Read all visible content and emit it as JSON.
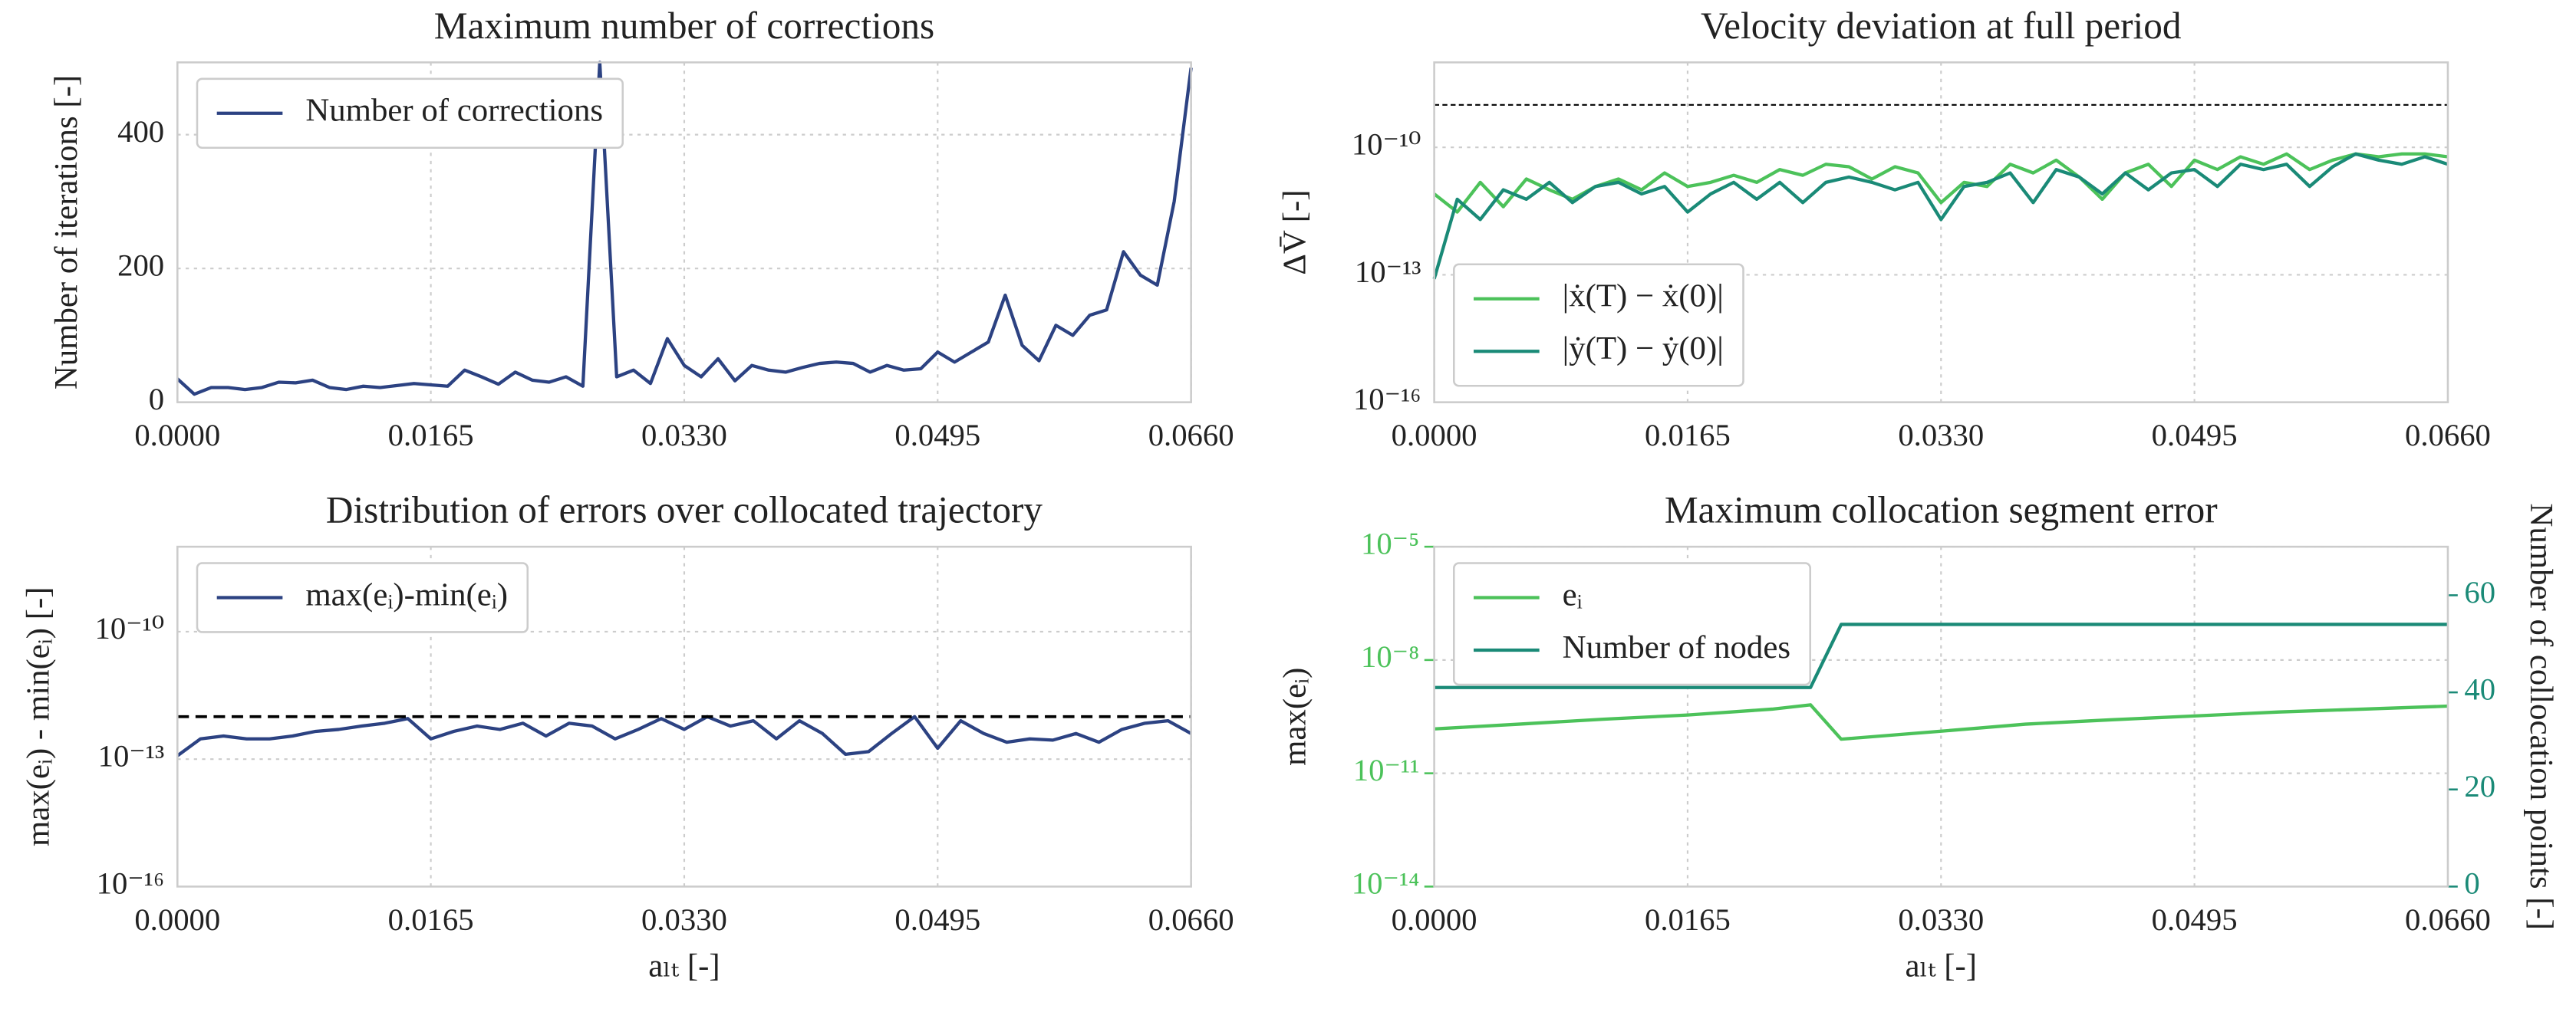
{
  "chart_data": [
    {
      "type": "line",
      "title": "Maximum number of corrections",
      "ylabel": "Number of iterations [-]",
      "x": [
        0,
        0.0011,
        0.0022,
        0.0033,
        0.0044,
        0.0055,
        0.0066,
        0.0077,
        0.0088,
        0.0099,
        0.011,
        0.0121,
        0.0132,
        0.0143,
        0.0154,
        0.0165,
        0.0176,
        0.0187,
        0.0198,
        0.0209,
        0.022,
        0.0231,
        0.0242,
        0.0253,
        0.0264,
        0.0275,
        0.0286,
        0.0297,
        0.0308,
        0.0319,
        0.033,
        0.0341,
        0.0352,
        0.0363,
        0.0374,
        0.0385,
        0.0396,
        0.0407,
        0.0418,
        0.0429,
        0.044,
        0.0451,
        0.0462,
        0.0473,
        0.0484,
        0.0495,
        0.0506,
        0.0517,
        0.0528,
        0.0539,
        0.055,
        0.0561,
        0.0572,
        0.0583,
        0.0594,
        0.0605,
        0.0616,
        0.0627,
        0.0638,
        0.0649,
        0.066
      ],
      "series": [
        {
          "name": "Number of corrections",
          "color": "#2c4282",
          "values": [
            35,
            12,
            22,
            22,
            19,
            22,
            30,
            29,
            33,
            22,
            19,
            24,
            22,
            25,
            28,
            26,
            24,
            48,
            38,
            27,
            45,
            33,
            30,
            38,
            24,
            508,
            38,
            48,
            28,
            95,
            55,
            38,
            65,
            32,
            55,
            48,
            45,
            52,
            58,
            60,
            58,
            45,
            55,
            48,
            50,
            75,
            60,
            75,
            90,
            160,
            85,
            62,
            115,
            100,
            130,
            138,
            225,
            190,
            175,
            300,
            500
          ]
        }
      ],
      "xlim": [
        0,
        0.066
      ],
      "xticks": [
        {
          "value": 0,
          "label": "0.0000"
        },
        {
          "value": 0.0165,
          "label": "0.0165"
        },
        {
          "value": 0.033,
          "label": "0.0330"
        },
        {
          "value": 0.0495,
          "label": "0.0495"
        },
        {
          "value": 0.066,
          "label": "0.0660"
        }
      ],
      "ylim": [
        0,
        508
      ],
      "yticks": [
        0,
        200,
        400
      ],
      "grid": true,
      "legend": "upper left"
    },
    {
      "type": "line",
      "title": "Velocity deviation at full period",
      "ylabel": "ΔV̄ [-]",
      "yscale": "log",
      "x": [
        0,
        0.0015,
        0.003,
        0.0045,
        0.006,
        0.0075,
        0.009,
        0.0105,
        0.012,
        0.0135,
        0.015,
        0.0165,
        0.018,
        0.0195,
        0.021,
        0.0225,
        0.024,
        0.0255,
        0.027,
        0.0285,
        0.03,
        0.0315,
        0.033,
        0.0345,
        0.036,
        0.0375,
        0.039,
        0.0405,
        0.042,
        0.0435,
        0.045,
        0.0465,
        0.048,
        0.0495,
        0.051,
        0.0525,
        0.054,
        0.0555,
        0.057,
        0.0585,
        0.06,
        0.0615,
        0.063,
        0.0645,
        0.066
      ],
      "series": [
        {
          "name": "|ẋ(T) − ẋ(0)|",
          "color": "#4cc25a",
          "values": [
            8e-12,
            3e-12,
            1.5e-11,
            4e-12,
            1.8e-11,
            1e-11,
            6e-12,
            1.2e-11,
            1.8e-11,
            1e-11,
            2.5e-11,
            1.2e-11,
            1.5e-11,
            2.2e-11,
            1.5e-11,
            3e-11,
            2.2e-11,
            4e-11,
            3.5e-11,
            1.8e-11,
            3.5e-11,
            2.5e-11,
            5e-12,
            1.5e-11,
            1.2e-11,
            4e-11,
            2.5e-11,
            5e-11,
            2e-11,
            6e-12,
            2.5e-11,
            4e-11,
            1.2e-11,
            5e-11,
            3e-11,
            6e-11,
            4e-11,
            7e-11,
            3e-11,
            5e-11,
            7e-11,
            6e-11,
            7e-11,
            7e-11,
            6e-11
          ]
        },
        {
          "name": "|ẏ(T) − ẏ(0)|",
          "color": "#1a8a77",
          "values": [
            8e-14,
            6e-12,
            2e-12,
            1e-11,
            6e-12,
            1.5e-11,
            5e-12,
            1.2e-11,
            1.5e-11,
            8e-12,
            1.2e-11,
            3e-12,
            8e-12,
            1.5e-11,
            6e-12,
            1.5e-11,
            5e-12,
            1.5e-11,
            2e-11,
            1.5e-11,
            1e-11,
            1.5e-11,
            2e-12,
            1.2e-11,
            1.5e-11,
            2.5e-11,
            5e-12,
            3e-11,
            2e-11,
            8e-12,
            2.5e-11,
            1e-11,
            2.5e-11,
            3e-11,
            1.2e-11,
            4e-11,
            3e-11,
            4e-11,
            1.2e-11,
            3.5e-11,
            7e-11,
            5e-11,
            4e-11,
            6e-11,
            4e-11
          ]
        }
      ],
      "hline": 1e-09,
      "xlim": [
        0,
        0.066
      ],
      "xticks": [
        {
          "value": 0,
          "label": "0.0000"
        },
        {
          "value": 0.0165,
          "label": "0.0165"
        },
        {
          "value": 0.033,
          "label": "0.0330"
        },
        {
          "value": 0.0495,
          "label": "0.0495"
        },
        {
          "value": 0.066,
          "label": "0.0660"
        }
      ],
      "ylim": [
        1e-16,
        1e-08
      ],
      "yticks": [
        {
          "value": 1e-16,
          "label": "10⁻¹⁶"
        },
        {
          "value": 1e-13,
          "label": "10⁻¹³"
        },
        {
          "value": 1e-10,
          "label": "10⁻¹⁰"
        }
      ],
      "grid": true,
      "legend": "lower left"
    },
    {
      "type": "line",
      "title": "Distribution of errors over collocated trajectory",
      "ylabel": "max(eᵢ) - min(eᵢ) [-]",
      "xlabel": "aₗₜ [-]",
      "yscale": "log",
      "x": [
        0,
        0.0015,
        0.003,
        0.0045,
        0.006,
        0.0075,
        0.009,
        0.0105,
        0.012,
        0.0135,
        0.015,
        0.0165,
        0.018,
        0.0195,
        0.021,
        0.0225,
        0.024,
        0.0255,
        0.027,
        0.0285,
        0.03,
        0.0315,
        0.033,
        0.0345,
        0.036,
        0.0375,
        0.039,
        0.0405,
        0.042,
        0.0435,
        0.045,
        0.0465,
        0.048,
        0.0495,
        0.051,
        0.0525,
        0.054,
        0.0555,
        0.057,
        0.0585,
        0.06,
        0.0615,
        0.063,
        0.0645,
        0.066
      ],
      "series": [
        {
          "name": "max(eᵢ)-min(eᵢ)",
          "color": "#2c4282",
          "values": [
            1.2e-13,
            3e-13,
            3.5e-13,
            3e-13,
            3e-13,
            3.5e-13,
            4.5e-13,
            5e-13,
            6e-13,
            7e-13,
            9e-13,
            3e-13,
            4.5e-13,
            6e-13,
            5e-13,
            7e-13,
            3.5e-13,
            7e-13,
            6e-13,
            3e-13,
            5e-13,
            9e-13,
            5e-13,
            1e-12,
            6e-13,
            8e-13,
            3e-13,
            8e-13,
            4e-13,
            1.3e-13,
            1.5e-13,
            4e-13,
            1e-12,
            1.8e-13,
            8e-13,
            4e-13,
            2.5e-13,
            3e-13,
            2.8e-13,
            4e-13,
            2.5e-13,
            5e-13,
            7e-13,
            8e-13,
            4e-13
          ]
        }
      ],
      "hline": 1e-12,
      "xlim": [
        0,
        0.066
      ],
      "xticks": [
        {
          "value": 0,
          "label": "0.0000"
        },
        {
          "value": 0.0165,
          "label": "0.0165"
        },
        {
          "value": 0.033,
          "label": "0.0330"
        },
        {
          "value": 0.0495,
          "label": "0.0495"
        },
        {
          "value": 0.066,
          "label": "0.0660"
        }
      ],
      "ylim": [
        1e-16,
        1e-08
      ],
      "yticks": [
        {
          "value": 1e-16,
          "label": "10⁻¹⁶"
        },
        {
          "value": 1e-13,
          "label": "10⁻¹³"
        },
        {
          "value": 1e-10,
          "label": "10⁻¹⁰"
        }
      ],
      "grid": true,
      "legend": "upper left"
    },
    {
      "type": "line",
      "title": "Maximum collocation segment error",
      "ylabel": "max(eᵢ)",
      "y2label": "Number of collocation points [-]",
      "xlabel": "aₗₜ [-]",
      "yscale": "log",
      "x": [
        0,
        0.0055,
        0.011,
        0.0165,
        0.022,
        0.0245,
        0.0265,
        0.033,
        0.0385,
        0.044,
        0.0495,
        0.055,
        0.0605,
        0.066
      ],
      "series": [
        {
          "name": "eᵢ",
          "color": "#4cc25a",
          "values": [
            1.5e-10,
            2e-10,
            2.7e-10,
            3.5e-10,
            5e-10,
            6.5e-10,
            8e-11,
            1.3e-10,
            2e-10,
            2.6e-10,
            3.3e-10,
            4.2e-10,
            5e-10,
            6e-10
          ]
        },
        {
          "name": "Number of nodes",
          "color": "#1a8a77",
          "axis": "y2",
          "values": [
            41,
            41,
            41,
            41,
            41,
            41,
            54,
            54,
            54,
            54,
            54,
            54,
            54,
            54
          ]
        }
      ],
      "xlim": [
        0,
        0.066
      ],
      "xticks": [
        {
          "value": 0,
          "label": "0.0000"
        },
        {
          "value": 0.0165,
          "label": "0.0165"
        },
        {
          "value": 0.033,
          "label": "0.0330"
        },
        {
          "value": 0.0495,
          "label": "0.0495"
        },
        {
          "value": 0.066,
          "label": "0.0660"
        }
      ],
      "ylim": [
        1e-14,
        1e-05
      ],
      "yticks": [
        {
          "value": 1e-14,
          "label": "10⁻¹⁴"
        },
        {
          "value": 1e-11,
          "label": "10⁻¹¹"
        },
        {
          "value": 1e-08,
          "label": "10⁻⁸"
        },
        {
          "value": 1e-05,
          "label": "10⁻⁵"
        }
      ],
      "y2lim": [
        0,
        70
      ],
      "y2ticks": [
        0,
        20,
        40,
        60
      ],
      "ytick_color": "#4cc25a",
      "y2tick_color": "#1a8a77",
      "grid": true,
      "legend": "upper left"
    }
  ]
}
